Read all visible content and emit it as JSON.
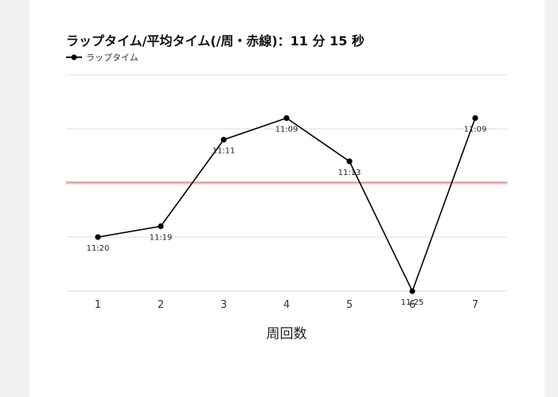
{
  "chart_data": {
    "type": "line",
    "title": "ラップタイム/平均タイム(/周・赤線)：11 分 15 秒",
    "xlabel": "周回数",
    "ylabel": "",
    "legend_position": "top-left",
    "grid": true,
    "categories": [
      "1",
      "2",
      "3",
      "4",
      "5",
      "6",
      "7"
    ],
    "series": [
      {
        "name": "ラップタイム",
        "values_seconds": [
          680,
          679,
          671,
          669,
          673,
          685,
          669
        ],
        "labels": [
          "11:20",
          "11:19",
          "11:11",
          "11:09",
          "11:13",
          "11:25",
          "11:09"
        ],
        "color": "#000000"
      }
    ],
    "average": {
      "value_seconds": 675,
      "color": "#e06060"
    },
    "ylim_seconds": [
      665,
      685
    ],
    "y_inverted": true
  },
  "colors": {
    "background": "#f1f1f1",
    "card": "#ffffff",
    "grid": "#dddddd"
  }
}
